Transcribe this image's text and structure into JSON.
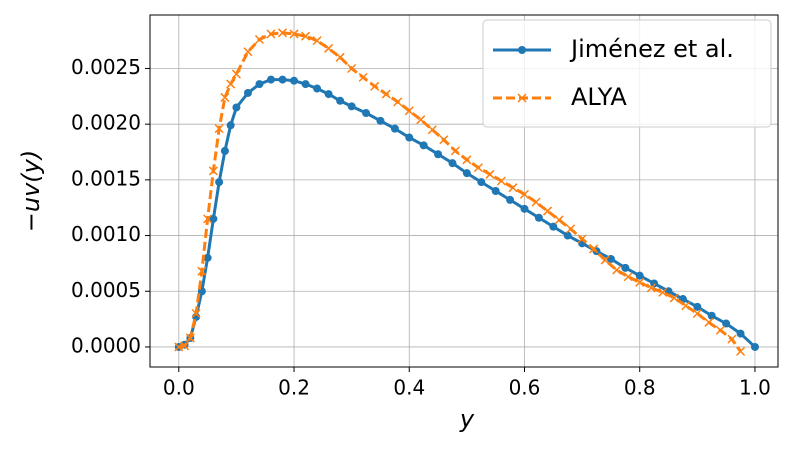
{
  "chart_data": {
    "type": "line",
    "xlabel": "y",
    "ylabel": "−uv(y)",
    "xlim": [
      -0.05,
      1.04
    ],
    "ylim": [
      -0.00018,
      0.00298
    ],
    "xticks": [
      {
        "value": 0,
        "label": "0.0"
      },
      0.2,
      0.4,
      0.6,
      0.8,
      {
        "value": 1,
        "label": "1.0"
      }
    ],
    "yticks": [
      {
        "value": 0,
        "label": "0.0000"
      },
      {
        "value": 0.0005,
        "label": "0.0005"
      },
      {
        "value": 0.001,
        "label": "0.0010"
      },
      {
        "value": 0.0015,
        "label": "0.0015"
      },
      {
        "value": 0.002,
        "label": "0.0020"
      },
      {
        "value": 0.0025,
        "label": "0.0025"
      }
    ],
    "grid": true,
    "legend": "upper right",
    "series": [
      {
        "name": "Jiménez et al.",
        "color": "#1f77b4",
        "marker": "o",
        "dashed": false,
        "x": [
          0,
          0.01,
          0.02,
          0.03,
          0.04,
          0.05,
          0.06,
          0.07,
          0.08,
          0.09,
          0.1,
          0.12,
          0.14,
          0.16,
          0.18,
          0.2,
          0.22,
          0.24,
          0.26,
          0.28,
          0.3,
          0.325,
          0.35,
          0.375,
          0.4,
          0.425,
          0.45,
          0.475,
          0.5,
          0.525,
          0.55,
          0.575,
          0.6,
          0.625,
          0.65,
          0.675,
          0.7,
          0.725,
          0.75,
          0.775,
          0.8,
          0.825,
          0.85,
          0.875,
          0.9,
          0.925,
          0.95,
          0.975,
          1.0
        ],
        "values": [
          0,
          2e-05,
          8e-05,
          0.00027,
          0.0005,
          0.0008,
          0.00115,
          0.00148,
          0.00176,
          0.00199,
          0.00215,
          0.00228,
          0.00236,
          0.0024,
          0.0024,
          0.00239,
          0.00236,
          0.00232,
          0.00227,
          0.00221,
          0.00216,
          0.0021,
          0.00203,
          0.00196,
          0.00188,
          0.00181,
          0.00173,
          0.00165,
          0.00156,
          0.00148,
          0.0014,
          0.00132,
          0.00124,
          0.00116,
          0.00108,
          0.001,
          0.00093,
          0.00086,
          0.00079,
          0.00071,
          0.00064,
          0.00057,
          0.0005,
          0.00043,
          0.00036,
          0.00028,
          0.00021,
          0.00012,
          0
        ]
      },
      {
        "name": "ALYA",
        "color": "#ff7f0e",
        "marker": "x",
        "dashed": true,
        "x": [
          0,
          0.01,
          0.02,
          0.03,
          0.04,
          0.05,
          0.06,
          0.07,
          0.08,
          0.09,
          0.1,
          0.12,
          0.14,
          0.16,
          0.18,
          0.2,
          0.22,
          0.24,
          0.26,
          0.28,
          0.3,
          0.32,
          0.34,
          0.36,
          0.38,
          0.4,
          0.42,
          0.44,
          0.46,
          0.48,
          0.5,
          0.52,
          0.54,
          0.56,
          0.58,
          0.6,
          0.62,
          0.64,
          0.66,
          0.68,
          0.7,
          0.72,
          0.74,
          0.76,
          0.78,
          0.8,
          0.82,
          0.84,
          0.86,
          0.88,
          0.9,
          0.92,
          0.94,
          0.96,
          0.975
        ],
        "values": [
          0,
          1e-05,
          8e-05,
          0.0003,
          0.00068,
          0.00115,
          0.00158,
          0.00196,
          0.00224,
          0.00236,
          0.00245,
          0.00265,
          0.00276,
          0.00281,
          0.00282,
          0.00281,
          0.00279,
          0.00275,
          0.00268,
          0.0026,
          0.0025,
          0.00242,
          0.00234,
          0.00227,
          0.0022,
          0.00212,
          0.00204,
          0.00195,
          0.00186,
          0.00176,
          0.00168,
          0.00161,
          0.00155,
          0.00149,
          0.00143,
          0.00137,
          0.0013,
          0.00122,
          0.00114,
          0.00106,
          0.00097,
          0.00088,
          0.00078,
          0.00069,
          0.00063,
          0.00058,
          0.00053,
          0.00049,
          0.00044,
          0.00037,
          0.0003,
          0.00022,
          0.00015,
          7e-05,
          -4e-05
        ]
      }
    ]
  }
}
